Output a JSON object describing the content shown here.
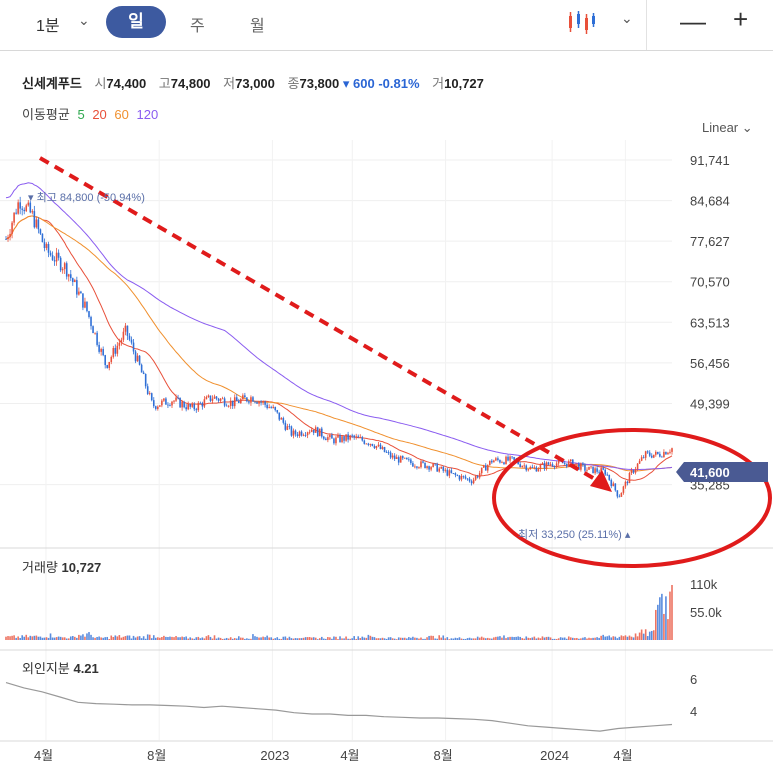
{
  "toolbar": {
    "interval": "1분",
    "tabs": [
      "일",
      "주",
      "월"
    ],
    "active_tab": "일",
    "zoom_out": "—",
    "zoom_in": "+"
  },
  "stock": {
    "name": "신세계푸드",
    "open_label": "시",
    "open": "74,400",
    "high_label": "고",
    "high": "74,800",
    "low_label": "저",
    "low": "73,000",
    "close_label": "종",
    "close": "73,800",
    "change": "▾ 600",
    "change_pct": "-0.81%",
    "volume_label": "거",
    "volume": "10,727"
  },
  "ma": {
    "label": "이동평균",
    "periods": [
      {
        "name": "5",
        "color": "#2fa84f"
      },
      {
        "name": "20",
        "color": "#e8503a"
      },
      {
        "name": "60",
        "color": "#f0902e"
      },
      {
        "name": "120",
        "color": "#8a5cf0"
      }
    ]
  },
  "scale_mode": "Linear ⌄",
  "colors": {
    "up": "#e8503a",
    "down": "#2f6fd6",
    "accent": "#3d5aa0",
    "annotation": "#e01b1b",
    "price_tag": "#4a5a93",
    "foreign": "#999999"
  },
  "annotations": {
    "high": "▾ 최고 84,800 (-50.94%)",
    "low": "최저 33,250 (25.11%) ▴",
    "price_tag": "41,600"
  },
  "volume_panel": {
    "label": "거래량",
    "value": "10,727",
    "ticks": [
      "110k",
      "55.0k"
    ]
  },
  "foreign_panel": {
    "label": "외인지분",
    "value": "4.21",
    "ticks": [
      "6",
      "4"
    ]
  },
  "chart_data": {
    "type": "line",
    "description_price": "daily candlestick price with moving averages",
    "y_ticks": [
      "91,741",
      "84,684",
      "77,627",
      "70,570",
      "63,513",
      "56,456",
      "49,399",
      "35,285"
    ],
    "ylim": [
      35285,
      91741
    ],
    "x_ticks": [
      "4월",
      "8월",
      "2023",
      "4월",
      "8월",
      "2024",
      "4월"
    ],
    "x_tick_values": [
      0.06,
      0.23,
      0.4,
      0.52,
      0.66,
      0.82,
      0.93
    ],
    "price_series": {
      "name": "",
      "x": [
        0,
        0.02,
        0.04,
        0.06,
        0.09,
        0.12,
        0.15,
        0.18,
        0.2,
        0.22,
        0.25,
        0.28,
        0.31,
        0.34,
        0.37,
        0.4,
        0.43,
        0.46,
        0.49,
        0.52,
        0.55,
        0.58,
        0.61,
        0.64,
        0.67,
        0.7,
        0.73,
        0.76,
        0.79,
        0.82,
        0.85,
        0.87,
        0.9,
        0.92,
        0.94,
        0.96,
        0.98,
        1.0
      ],
      "y": [
        78000,
        84800,
        82000,
        76000,
        73000,
        66000,
        56000,
        62000,
        56000,
        49000,
        50000,
        48500,
        50500,
        49500,
        50500,
        48500,
        44000,
        45000,
        43000,
        43500,
        42500,
        40000,
        39000,
        38500,
        37000,
        36000,
        39500,
        39500,
        38000,
        39000,
        39000,
        38000,
        37500,
        33250,
        37500,
        40500,
        40500,
        41600
      ]
    },
    "volume_series": {
      "name": "거래량",
      "values": [
        8000,
        9000,
        12000,
        7000,
        14000,
        6000,
        9000,
        8000,
        11000,
        7000,
        6000,
        9000,
        5000,
        7000,
        10000,
        6000,
        8000,
        5000,
        6000,
        7000,
        9000,
        6000,
        5000,
        7000,
        8000,
        5000,
        6000,
        7000,
        9000,
        6000,
        8000,
        5000,
        6000,
        7000,
        9000,
        12000,
        18000,
        110000
      ]
    },
    "foreign_series": {
      "name": "외인지분",
      "values": [
        7.0,
        6.6,
        6.3,
        5.9,
        5.5,
        5.4,
        5.35,
        5.3,
        5.3,
        5.25,
        5.2,
        5.1,
        5.2,
        5.1,
        5.0,
        4.9,
        4.7,
        4.6,
        4.6,
        4.5,
        4.5,
        4.4,
        4.35,
        4.3,
        4.3,
        4.25,
        4.2,
        4.1,
        3.9,
        3.7,
        3.6,
        3.5,
        3.4,
        3.3,
        3.5,
        3.6,
        3.7,
        3.8
      ]
    }
  }
}
